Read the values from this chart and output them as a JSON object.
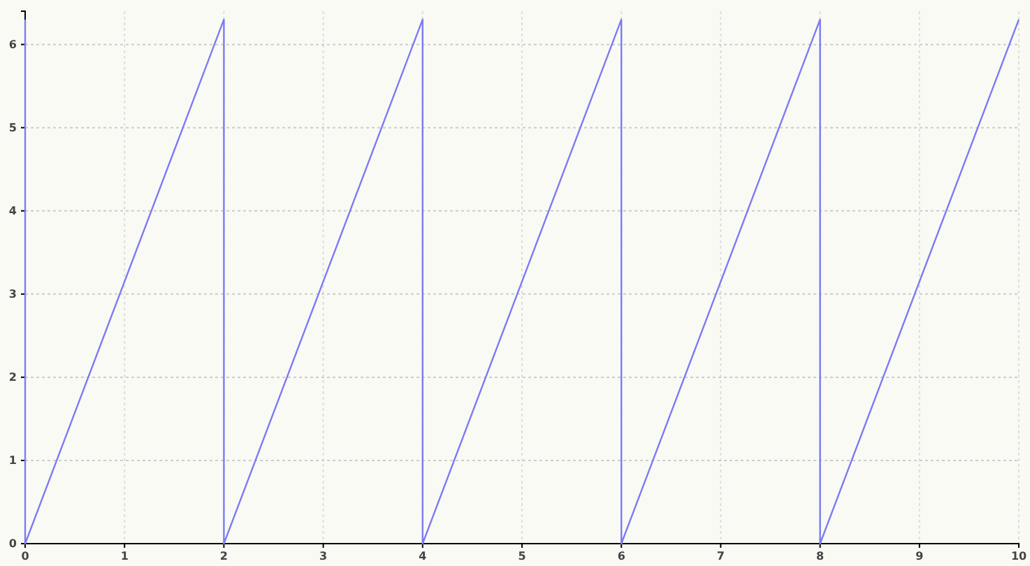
{
  "chart_data": {
    "type": "line",
    "x": [
      0,
      0,
      2,
      2,
      4,
      4,
      6,
      6,
      8,
      8,
      10
    ],
    "series": [
      {
        "color": "#7b7bf5",
        "values": [
          6.3,
          0,
          6.3,
          0,
          6.3,
          0,
          6.3,
          0,
          6.3,
          0,
          6.3
        ]
      }
    ],
    "xlim": [
      0,
      10
    ],
    "xticks": [
      0,
      1,
      2,
      3,
      4,
      5,
      6,
      7,
      8,
      9,
      10
    ],
    "ylim": [
      0,
      6.4
    ],
    "yticks": [
      0,
      1,
      2,
      3,
      4,
      5,
      6
    ],
    "grid": true,
    "marker": "none",
    "line_style": "solid"
  }
}
